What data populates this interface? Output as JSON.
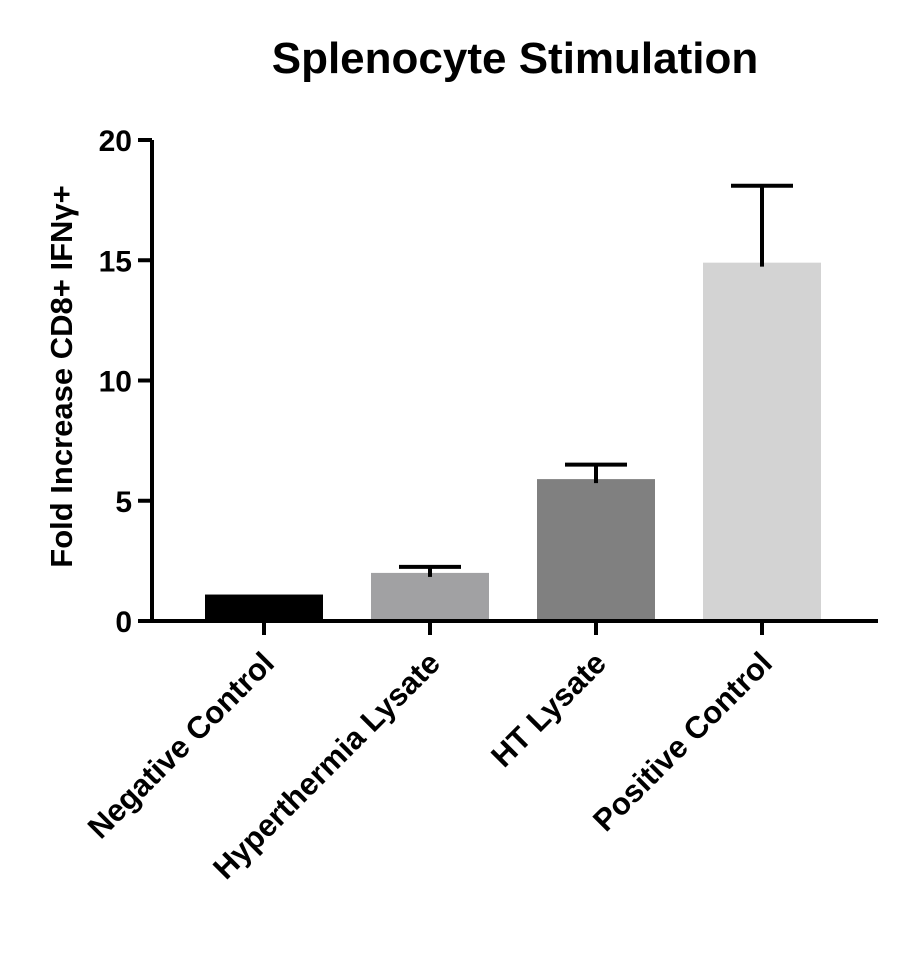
{
  "chart_data": {
    "type": "bar",
    "title": "Splenocyte Stimulation",
    "xlabel": "",
    "ylabel": "Fold Increase CD8+ IFNγ+",
    "categories": [
      "Negative Control",
      "Hyperthermia Lysate",
      "HT Lysate",
      "Positive Control"
    ],
    "values": [
      1.1,
      2.0,
      5.9,
      14.9
    ],
    "errors": [
      0,
      0.25,
      0.6,
      3.2
    ],
    "colors": [
      "#000000",
      "#a1a1a3",
      "#808080",
      "#d3d3d3"
    ],
    "ylim": [
      0,
      20
    ],
    "yticks": [
      0,
      5,
      10,
      15,
      20
    ],
    "ytick_labels": [
      "0",
      "5",
      "10",
      "15",
      "20"
    ],
    "grid": false,
    "legend": "none"
  }
}
